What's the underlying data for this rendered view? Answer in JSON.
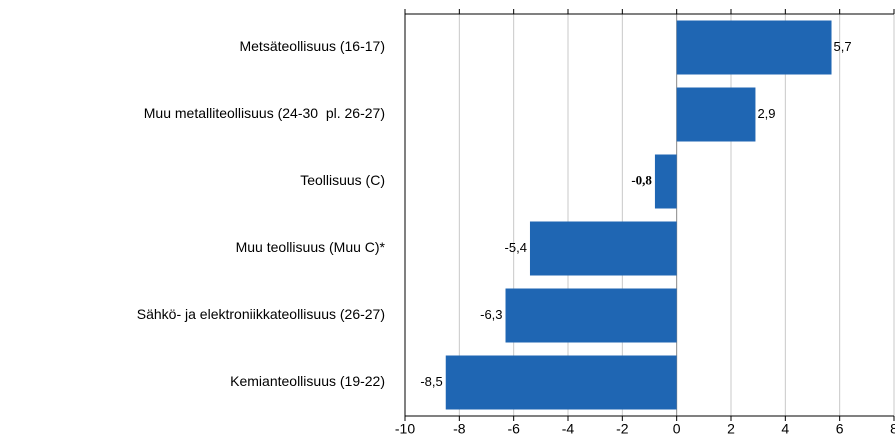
{
  "chart_data": {
    "type": "barh",
    "categories": [
      "Metsäteollisuus (16-17)",
      "Muu metalliteollisuus (24-30  pl. 26-27)",
      "Teollisuus (C)",
      "Muu teollisuus (Muu C)*",
      "Sähkö- ja elektroniikkateollisuus (26-27)",
      "Kemianteollisuus (19-22)"
    ],
    "values": [
      5.7,
      2.9,
      -0.8,
      -5.4,
      -6.3,
      -8.5
    ],
    "value_labels": [
      "5,7",
      "2,9",
      "-0,8",
      "-5,4",
      "-6,3",
      "-8,5"
    ],
    "color": "#1f66b3",
    "xlim": [
      -10,
      8
    ],
    "xticks": [
      -10,
      -8,
      -6,
      -4,
      -2,
      0,
      2,
      4,
      6,
      8
    ],
    "grid": true
  }
}
